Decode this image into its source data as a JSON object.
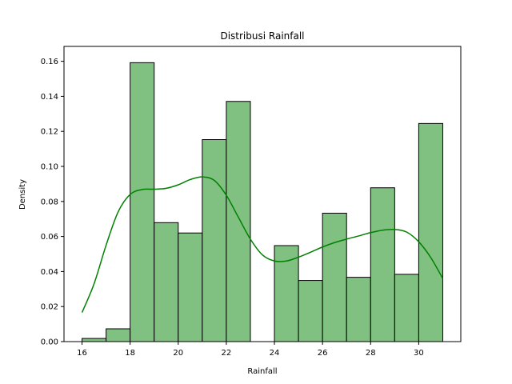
{
  "chart_data": {
    "type": "bar",
    "title": "Distribusi Rainfall",
    "xlabel": "Rainfall",
    "ylabel": "Density",
    "xlim": [
      15.25,
      31.75
    ],
    "ylim": [
      0,
      0.1685
    ],
    "xticks": [
      16,
      18,
      20,
      22,
      24,
      26,
      28,
      30
    ],
    "yticks": [
      0.0,
      0.02,
      0.04,
      0.06,
      0.08,
      0.1,
      0.12,
      0.14,
      0.16
    ],
    "bar_color": "#80c080",
    "bar_edge_color": "#000000",
    "kde_color": "#008000",
    "bins": [
      {
        "x0": 16,
        "x1": 17,
        "value": 0.0018
      },
      {
        "x0": 17,
        "x1": 18,
        "value": 0.0073
      },
      {
        "x0": 18,
        "x1": 19,
        "value": 0.1592
      },
      {
        "x0": 19,
        "x1": 20,
        "value": 0.0679
      },
      {
        "x0": 20,
        "x1": 21,
        "value": 0.062
      },
      {
        "x0": 21,
        "x1": 22,
        "value": 0.1153
      },
      {
        "x0": 22,
        "x1": 23,
        "value": 0.1371
      },
      {
        "x0": 23,
        "x1": 24,
        "value": 0.0
      },
      {
        "x0": 24,
        "x1": 25,
        "value": 0.0548
      },
      {
        "x0": 25,
        "x1": 26,
        "value": 0.0349
      },
      {
        "x0": 26,
        "x1": 27,
        "value": 0.0733
      },
      {
        "x0": 27,
        "x1": 28,
        "value": 0.0367
      },
      {
        "x0": 28,
        "x1": 29,
        "value": 0.0878
      },
      {
        "x0": 29,
        "x1": 30,
        "value": 0.0384
      },
      {
        "x0": 30,
        "x1": 31,
        "value": 0.1245
      }
    ],
    "kde": {
      "x": [
        16.0,
        16.5,
        17.0,
        17.5,
        18.0,
        18.5,
        19.0,
        19.5,
        20.0,
        20.5,
        21.0,
        21.5,
        22.0,
        22.5,
        23.0,
        23.5,
        24.0,
        24.5,
        25.0,
        25.5,
        26.0,
        26.5,
        27.0,
        27.5,
        28.0,
        28.5,
        29.0,
        29.5,
        30.0,
        30.5,
        31.0
      ],
      "y": [
        0.0166,
        0.033,
        0.055,
        0.074,
        0.084,
        0.0868,
        0.087,
        0.0875,
        0.0895,
        0.0925,
        0.094,
        0.092,
        0.0835,
        0.071,
        0.0585,
        0.0495,
        0.046,
        0.046,
        0.0482,
        0.051,
        0.054,
        0.0565,
        0.0585,
        0.0603,
        0.0622,
        0.0636,
        0.064,
        0.0625,
        0.057,
        0.048,
        0.036
      ]
    }
  }
}
